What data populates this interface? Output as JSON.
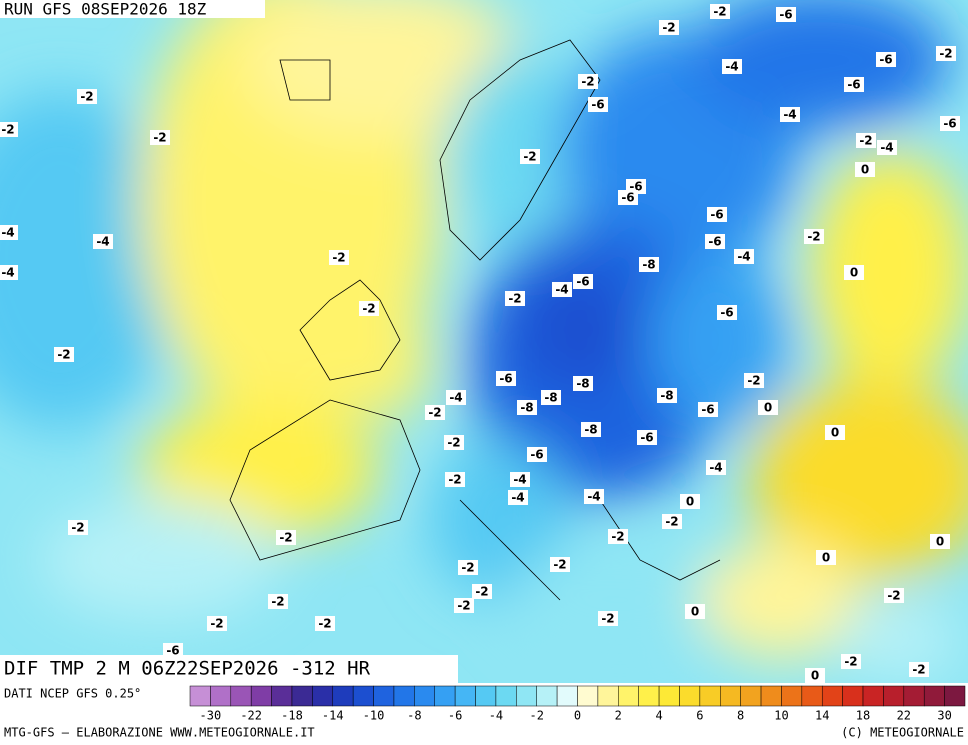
{
  "header": {
    "run": "RUN GFS 08SEP2026 18Z",
    "field": "DIF TMP 2 M 06Z22SEP2026 -312 HR"
  },
  "footer": {
    "source": "DATI NCEP GFS 0.25°",
    "credit": "MTG-GFS — ELABORAZIONE WWW.METEOGIORNALE.IT",
    "copyright": "(C) METEOGIORNALE"
  },
  "colorbar": {
    "ticks": [
      -30,
      -22,
      -18,
      -14,
      -10,
      -8,
      -6,
      -4,
      -2,
      0,
      2,
      4,
      6,
      8,
      10,
      14,
      18,
      22,
      30
    ],
    "colors": [
      "#c68fd6",
      "#b070c8",
      "#9a55b6",
      "#7f3da6",
      "#5a2e98",
      "#3b2a94",
      "#2a2fa8",
      "#1e3cbc",
      "#1c4fd0",
      "#1f63df",
      "#2276e8",
      "#2a8aef",
      "#35a0f3",
      "#45b6f5",
      "#55c9f3",
      "#6cd9f2",
      "#8fe6f4",
      "#b6f1f7",
      "#e2fbfc",
      "#fffbd0",
      "#fff59a",
      "#fff36a",
      "#fff04a",
      "#fde936",
      "#fbdc2c",
      "#f8cc26",
      "#f5b922",
      "#f2a31f",
      "#ef8c1c",
      "#ec7319",
      "#e85a18",
      "#e24318",
      "#d8301c",
      "#c92424",
      "#b81f2c",
      "#a41c34",
      "#901a3a",
      "#7c1840"
    ]
  },
  "map_labels": [
    -2,
    -2,
    -2,
    -4,
    -4,
    -4,
    -2,
    -2,
    -2,
    -6,
    -2,
    -6,
    -4,
    -6,
    -2,
    -6,
    -4,
    -6,
    -2,
    -4,
    -2,
    0,
    -6,
    -6,
    -6,
    -6,
    -2,
    -4,
    -2,
    -8,
    -6,
    -4,
    0,
    -2,
    -2,
    -6,
    -6,
    -8,
    -2,
    -4,
    -8,
    -8,
    -8,
    -2,
    -6,
    0,
    0,
    -8,
    -6,
    -2,
    -6,
    -4,
    -2,
    -4,
    -4,
    -4,
    0,
    -2,
    -2,
    -2,
    -2,
    0,
    0,
    -2,
    -2,
    -2,
    -2,
    -2,
    -2,
    -2,
    -2,
    -2,
    0,
    -6,
    -2,
    -2,
    0
  ]
}
